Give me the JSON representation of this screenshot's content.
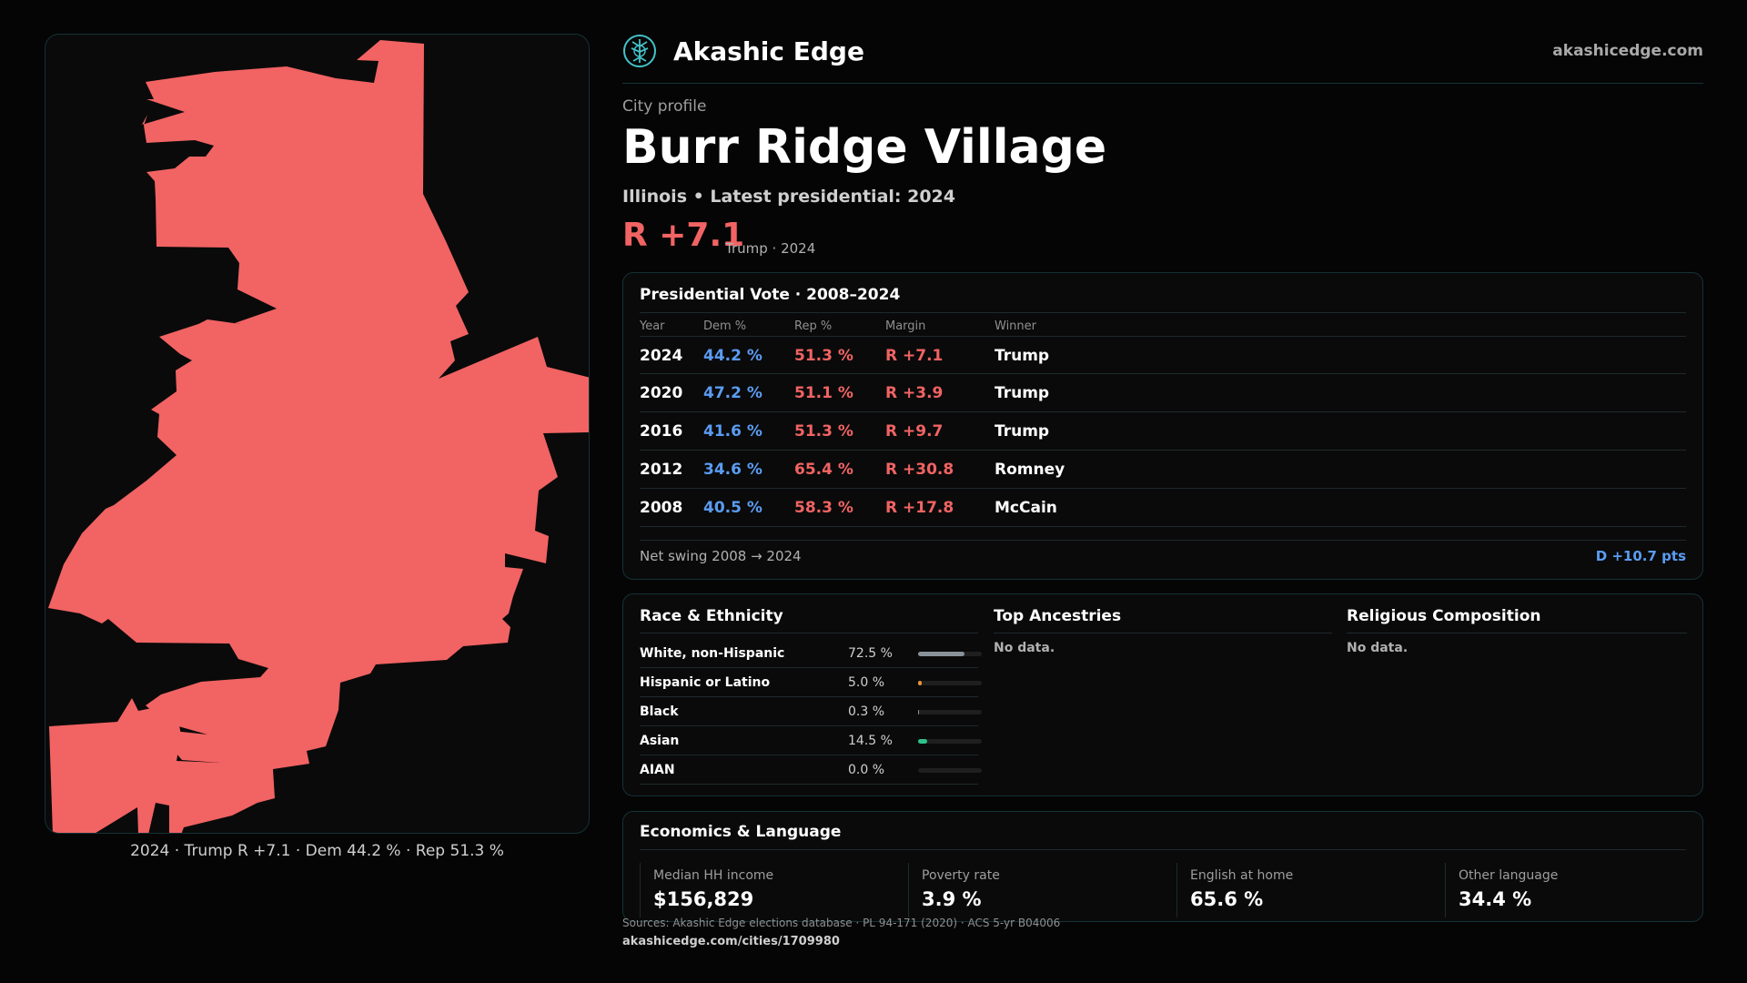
{
  "map": {
    "caption": "2024 · Trump R +7.1 · Dem 44.2 % · Rep 51.3 %",
    "fill_color": "#f26363"
  },
  "header": {
    "brand": "Akashic Edge",
    "site": "akashicedge.com",
    "logo_icon": "tree-globe-icon"
  },
  "profile": {
    "label": "City profile",
    "title": "Burr Ridge Village",
    "subtitle": "Illinois • Latest presidential: 2024",
    "margin": "R +7.1",
    "margin_sub": "Trump · 2024"
  },
  "vote": {
    "title": "Presidential Vote · 2008–2024",
    "headers": [
      "Year",
      "Dem %",
      "Rep %",
      "Margin",
      "Winner"
    ],
    "rows": [
      {
        "year": "2024",
        "dem": "44.2 %",
        "rep": "51.3 %",
        "margin": "R +7.1",
        "winner": "Trump"
      },
      {
        "year": "2020",
        "dem": "47.2 %",
        "rep": "51.1 %",
        "margin": "R +3.9",
        "winner": "Trump"
      },
      {
        "year": "2016",
        "dem": "41.6 %",
        "rep": "51.3 %",
        "margin": "R +9.7",
        "winner": "Trump"
      },
      {
        "year": "2012",
        "dem": "34.6 %",
        "rep": "65.4 %",
        "margin": "R +30.8",
        "winner": "Romney"
      },
      {
        "year": "2008",
        "dem": "40.5 %",
        "rep": "58.3 %",
        "margin": "R +17.8",
        "winner": "McCain"
      }
    ],
    "swing_label": "Net swing 2008 → 2024",
    "swing_value": "D +10.7 pts"
  },
  "race": {
    "title": "Race & Ethnicity",
    "rows": [
      {
        "label": "White, non-Hispanic",
        "value": "72.5 %",
        "pct": 72.5,
        "color": "#8a9299"
      },
      {
        "label": "Hispanic or Latino",
        "value": "5.0 %",
        "pct": 5.0,
        "color": "#e8913a"
      },
      {
        "label": "Black",
        "value": "0.3 %",
        "pct": 0.3,
        "color": "#8a9299"
      },
      {
        "label": "Asian",
        "value": "14.5 %",
        "pct": 14.5,
        "color": "#2ec28a"
      },
      {
        "label": "AIAN",
        "value": "0.0 %",
        "pct": 0.0,
        "color": "#8a9299"
      }
    ]
  },
  "ancestry": {
    "title": "Top Ancestries",
    "empty": "No data."
  },
  "religion": {
    "title": "Religious Composition",
    "empty": "No data."
  },
  "economics": {
    "title": "Economics & Language",
    "stats": [
      {
        "label": "Median HH income",
        "value": "$156,829"
      },
      {
        "label": "Poverty rate",
        "value": "3.9 %"
      },
      {
        "label": "English at home",
        "value": "65.6 %"
      },
      {
        "label": "Other language",
        "value": "34.4 %"
      }
    ]
  },
  "footer": {
    "sources": "Sources: Akashic Edge elections database · PL 94-171 (2020) · ACS 5-yr B04006",
    "url": "akashicedge.com/cities/1709980"
  }
}
